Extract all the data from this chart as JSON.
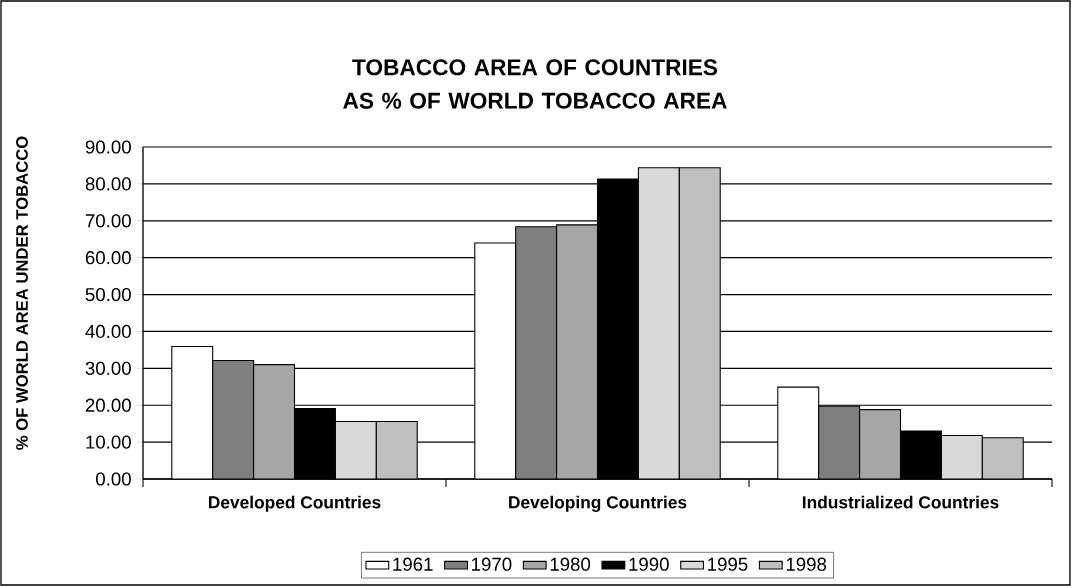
{
  "chart_data": {
    "type": "bar",
    "title": "TOBACCO AREA OF COUNTRIES AS % OF WORLD TOBACCO AREA",
    "ylabel": "% OF WORLD AREA UNDER TOBACCO",
    "categories": [
      "Developed Countries",
      "Developing Countries",
      "Industrialized Countries"
    ],
    "series": [
      {
        "name": "1961",
        "color": "#ffffff",
        "values": [
          35.9,
          64.0,
          24.9
        ]
      },
      {
        "name": "1970",
        "color": "#7f7f7f",
        "values": [
          32.1,
          68.4,
          19.7
        ]
      },
      {
        "name": "1980",
        "color": "#a6a6a6",
        "values": [
          31.0,
          68.9,
          18.8
        ]
      },
      {
        "name": "1990",
        "color": "#000000",
        "values": [
          19.1,
          81.3,
          13.0
        ]
      },
      {
        "name": "1995",
        "color": "#d9d9d9",
        "values": [
          15.6,
          84.4,
          11.8
        ]
      },
      {
        "name": "1998",
        "color": "#bfbfbf",
        "values": [
          15.6,
          84.4,
          11.2
        ]
      }
    ],
    "ylim": [
      0,
      90
    ],
    "yticks": [
      {
        "value": 0,
        "label": "0.00"
      },
      {
        "value": 10,
        "label": "10.00"
      },
      {
        "value": 20,
        "label": "20.00"
      },
      {
        "value": 30,
        "label": "30.00"
      },
      {
        "value": 40,
        "label": "40.00"
      },
      {
        "value": 50,
        "label": "50.00"
      },
      {
        "value": 60,
        "label": "60.00"
      },
      {
        "value": 70,
        "label": "70.00"
      },
      {
        "value": 80,
        "label": "80.00"
      },
      {
        "value": 90,
        "label": "90.00"
      }
    ],
    "grid": "y",
    "legend": "bottom"
  }
}
